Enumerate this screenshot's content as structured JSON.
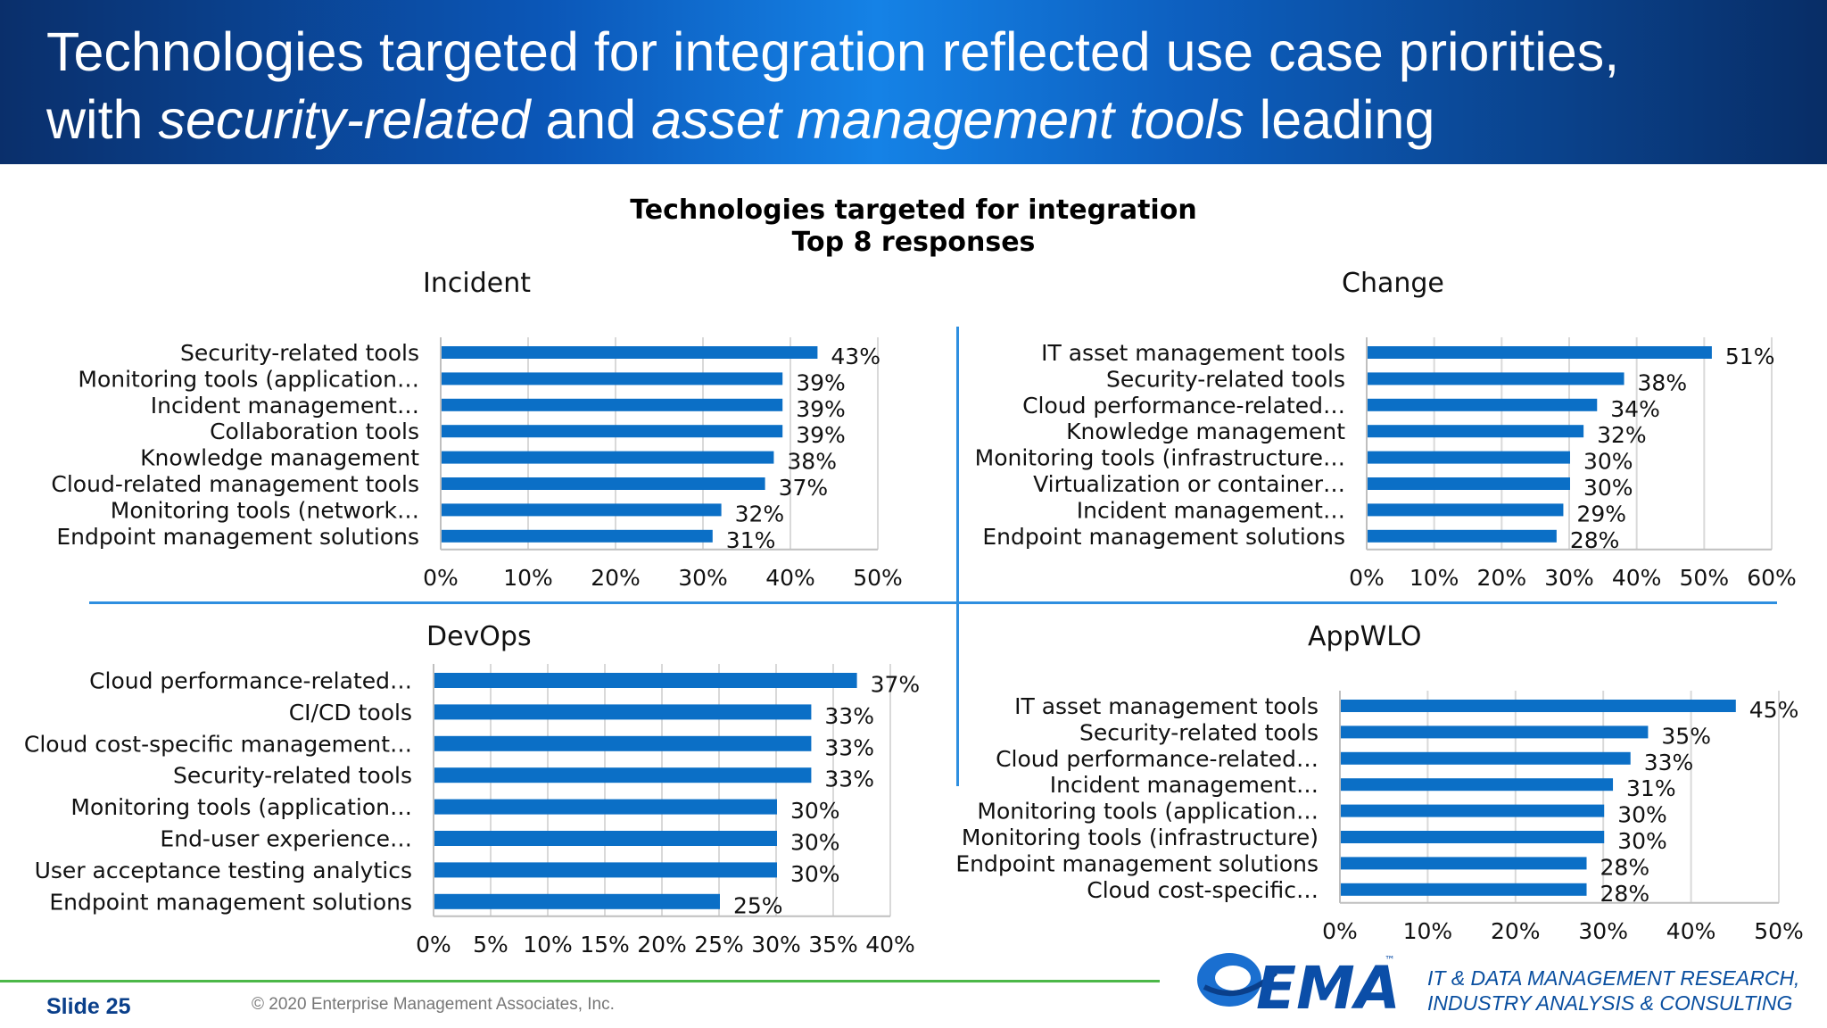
{
  "header": {
    "line1": "Technologies targeted for integration reflected use case priorities,",
    "line2_a": "with ",
    "line2_b": "security-related",
    "line2_c": " and ",
    "line2_d": "asset management tools",
    "line2_e": " leading"
  },
  "chart_heading": {
    "line1": "Technologies targeted for integration",
    "line2": "Top 8 responses"
  },
  "colors": {
    "bar": "#0b6fc6",
    "banner": "#0b57b8",
    "divider": "#2e8fe0",
    "accent_green": "#4cb848"
  },
  "chart_data": [
    {
      "type": "bar",
      "orientation": "horizontal",
      "title": "Incident",
      "categories": [
        "Security-related tools",
        "Monitoring tools (application…",
        "Incident management…",
        "Collaboration tools",
        "Knowledge management",
        "Cloud-related management tools",
        "Monitoring tools (network…",
        "Endpoint management solutions"
      ],
      "values": [
        43,
        39,
        39,
        39,
        38,
        37,
        32,
        31
      ],
      "value_labels": [
        "43%",
        "39%",
        "39%",
        "39%",
        "38%",
        "37%",
        "32%",
        "31%"
      ],
      "xlim": [
        0,
        50
      ],
      "ticks": [
        "0%",
        "10%",
        "20%",
        "30%",
        "40%",
        "50%"
      ],
      "grid": true
    },
    {
      "type": "bar",
      "orientation": "horizontal",
      "title": "Change",
      "categories": [
        "IT asset management tools",
        "Security-related tools",
        "Cloud performance-related…",
        "Knowledge management",
        "Monitoring tools (infrastructure…",
        "Virtualization or container…",
        "Incident management…",
        "Endpoint management solutions"
      ],
      "values": [
        51,
        38,
        34,
        32,
        30,
        30,
        29,
        28
      ],
      "value_labels": [
        "51%",
        "38%",
        "34%",
        "32%",
        "30%",
        "30%",
        "29%",
        "28%"
      ],
      "xlim": [
        0,
        60
      ],
      "ticks": [
        "0%",
        "10%",
        "20%",
        "30%",
        "40%",
        "50%",
        "60%"
      ],
      "grid": true
    },
    {
      "type": "bar",
      "orientation": "horizontal",
      "title": "DevOps",
      "categories": [
        "Cloud performance-related…",
        "CI/CD tools",
        "Cloud cost-specific management…",
        "Security-related tools",
        "Monitoring tools (application…",
        "End-user experience…",
        "User acceptance testing analytics",
        "Endpoint management solutions"
      ],
      "values": [
        37,
        33,
        33,
        33,
        30,
        30,
        30,
        25
      ],
      "value_labels": [
        "37%",
        "33%",
        "33%",
        "33%",
        "30%",
        "30%",
        "30%",
        "25%"
      ],
      "xlim": [
        0,
        40
      ],
      "ticks": [
        "0%",
        "5%",
        "10%",
        "15%",
        "20%",
        "25%",
        "30%",
        "35%",
        "40%"
      ],
      "grid": true
    },
    {
      "type": "bar",
      "orientation": "horizontal",
      "title": "AppWLO",
      "categories": [
        "IT asset management tools",
        "Security-related tools",
        "Cloud performance-related…",
        "Incident management…",
        "Monitoring tools (application…",
        "Monitoring tools (infrastructure)",
        "Endpoint management solutions",
        "Cloud cost-specific…"
      ],
      "values": [
        45,
        35,
        33,
        31,
        30,
        30,
        28,
        28
      ],
      "value_labels": [
        "45%",
        "35%",
        "33%",
        "31%",
        "30%",
        "30%",
        "28%",
        "28%"
      ],
      "xlim": [
        0,
        50
      ],
      "ticks": [
        "0%",
        "10%",
        "20%",
        "30%",
        "40%",
        "50%"
      ],
      "grid": true
    }
  ],
  "footer": {
    "slide": "Slide 25",
    "copyright": "© 2020 Enterprise Management Associates, Inc.",
    "logo_text": "EMA",
    "logo_tm": "™",
    "tagline1": "IT & DATA MANAGEMENT RESEARCH,",
    "tagline2": "INDUSTRY ANALYSIS & CONSULTING"
  }
}
